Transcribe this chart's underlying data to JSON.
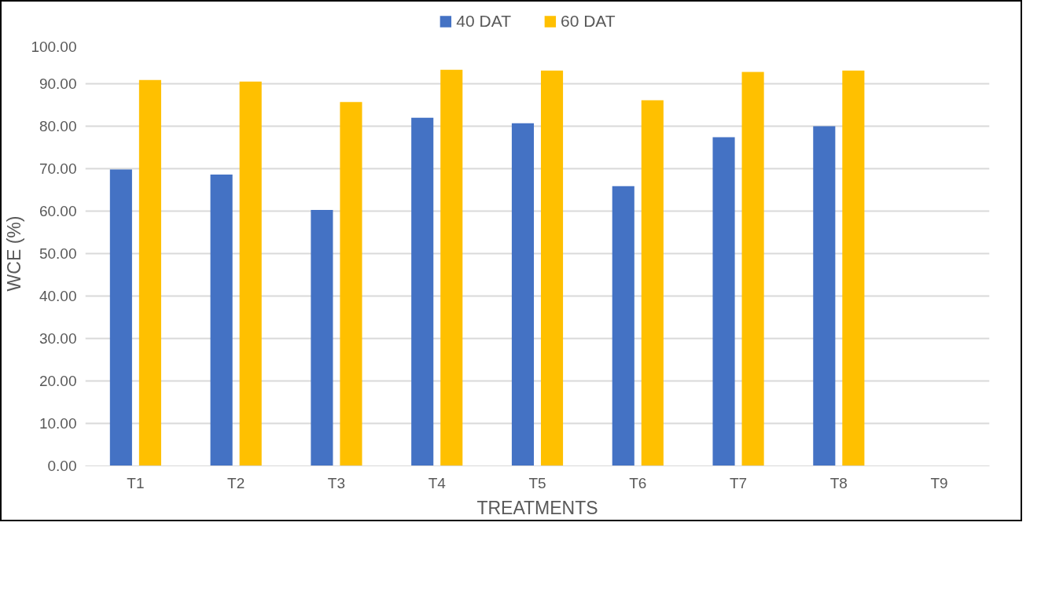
{
  "chart_data": {
    "type": "bar",
    "xlabel": "TREATMENTS",
    "ylabel": "WCE (%)",
    "categories": [
      "T1",
      "T2",
      "T3",
      "T4",
      "T5",
      "T6",
      "T7",
      "T8",
      "T9"
    ],
    "series": [
      {
        "name": "40 DAT",
        "color": "#4472c4",
        "values": [
          69.8,
          68.6,
          60.3,
          82.0,
          80.7,
          65.9,
          77.4,
          80.0,
          0
        ]
      },
      {
        "name": "60 DAT",
        "color": "#ffc000",
        "values": [
          90.9,
          90.5,
          85.7,
          93.3,
          93.1,
          86.1,
          92.8,
          93.1,
          0
        ]
      }
    ],
    "ylim": [
      0,
      100
    ],
    "yticks": [
      {
        "value": 0,
        "label": "0.00"
      },
      {
        "value": 10,
        "label": "10.00"
      },
      {
        "value": 20,
        "label": "20.00"
      },
      {
        "value": 30,
        "label": "30.00"
      },
      {
        "value": 40,
        "label": "40.00"
      },
      {
        "value": 50,
        "label": "50.00"
      },
      {
        "value": 60,
        "label": "60.00"
      },
      {
        "value": 70,
        "label": "70.00"
      },
      {
        "value": 80,
        "label": "80.00"
      },
      {
        "value": 90,
        "label": "90.00"
      },
      {
        "value": 100,
        "label": "100.00"
      }
    ],
    "grid": "y",
    "legend": "top"
  }
}
